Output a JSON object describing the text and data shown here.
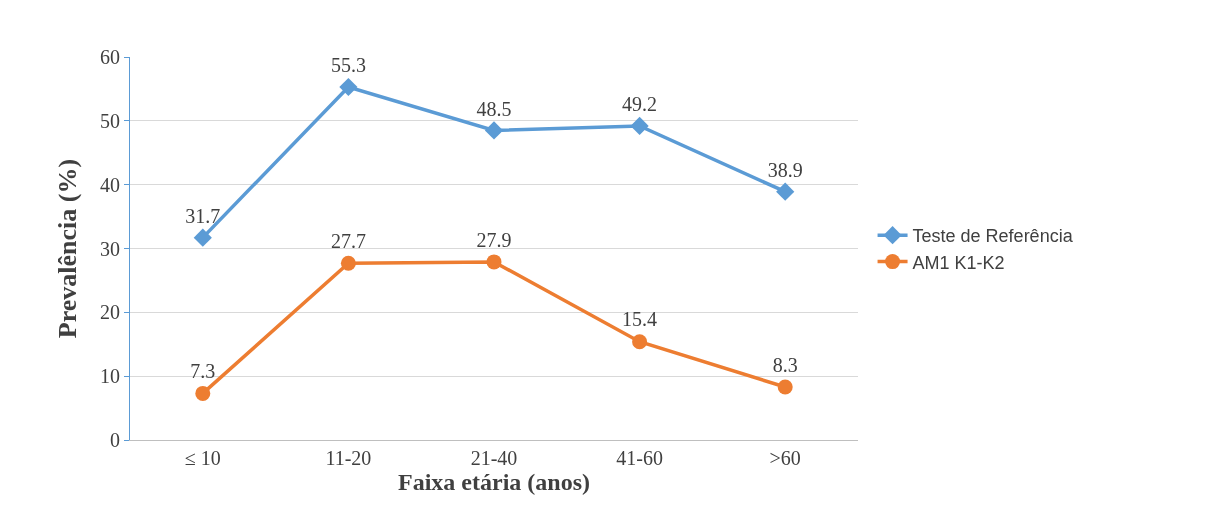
{
  "chart_data": {
    "type": "line",
    "xlabel": "Faixa etária (anos)",
    "ylabel": "Prevalência (%)",
    "categories": [
      "≤ 10",
      "11-20",
      "21-40",
      "41-60",
      ">60"
    ],
    "series": [
      {
        "name": "Teste de Referência",
        "color": "#5b9bd5",
        "marker": "diamond",
        "values": [
          31.7,
          55.3,
          48.5,
          49.2,
          38.9
        ]
      },
      {
        "name": "AM1 K1-K2",
        "color": "#ed7d31",
        "marker": "circle",
        "values": [
          7.3,
          27.7,
          27.9,
          15.4,
          8.3
        ]
      }
    ],
    "ylim": [
      0,
      60
    ],
    "yticks": [
      0,
      10,
      20,
      30,
      40,
      50,
      60
    ],
    "grid": "y",
    "legend": "right",
    "data_labels": true,
    "line_style": "solid"
  }
}
